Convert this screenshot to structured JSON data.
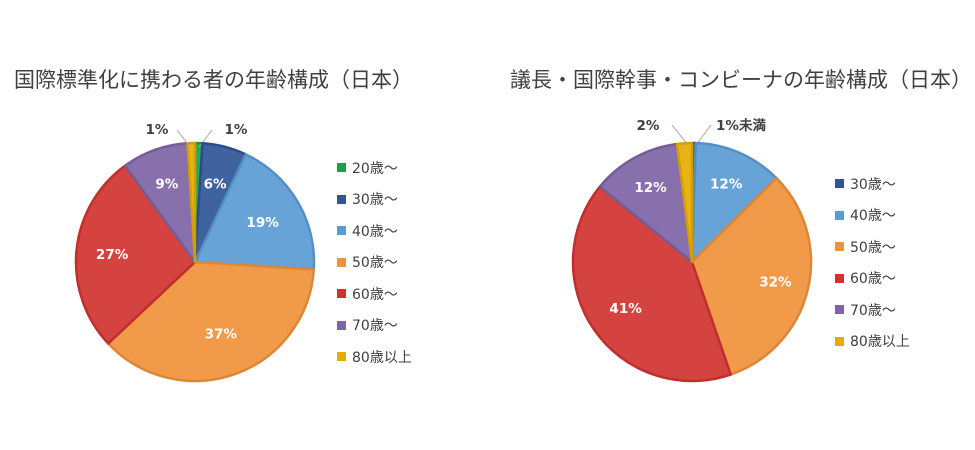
{
  "chart_data": [
    {
      "type": "pie",
      "title": "国際標準化に携わる者の年齢構成（日本）",
      "categories": [
        "20歳～",
        "30歳～",
        "40歳～",
        "50歳～",
        "60歳～",
        "70歳～",
        "80歳以上"
      ],
      "values": [
        1,
        6,
        19,
        37,
        27,
        9,
        1
      ],
      "labels": [
        "1%",
        "6%",
        "19%",
        "37%",
        "27%",
        "9%",
        "1%"
      ],
      "colors": [
        "#1e9e4a",
        "#2f5597",
        "#5b9bd5",
        "#f0923a",
        "#d0332f",
        "#7e64a6",
        "#e6ac00"
      ],
      "legend_position": "right"
    },
    {
      "type": "pie",
      "title": "議長・国際幹事・コンビーナの年齢構成（日本）",
      "categories": [
        "30歳～",
        "40歳～",
        "50歳～",
        "60歳～",
        "70歳～",
        "80歳以上"
      ],
      "values": [
        0.5,
        12,
        32,
        41,
        12,
        2
      ],
      "labels": [
        "1%未満",
        "12%",
        "32%",
        "41%",
        "12%",
        "2%"
      ],
      "colors": [
        "#2f5597",
        "#5b9bd5",
        "#f0923a",
        "#d0332f",
        "#7e64a6",
        "#e6ac00"
      ],
      "legend_position": "right"
    }
  ]
}
